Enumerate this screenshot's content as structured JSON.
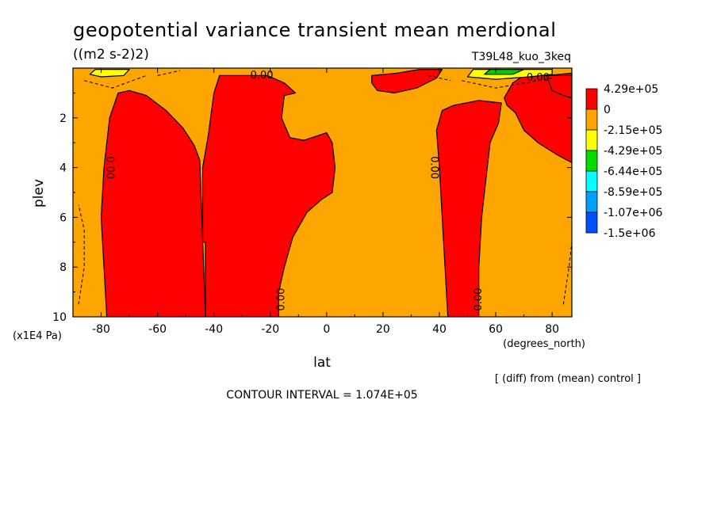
{
  "chart_data": {
    "type": "heatmap",
    "title": "geopotential variance transient mean merdional",
    "units": "((m2 s-2)2)",
    "run_label": "T39L48_kuo_3keq",
    "xlabel": "lat",
    "x_units": "(degrees_north)",
    "ylabel": "plev",
    "y_units": "(x1E4 Pa)",
    "xlim": [
      -90,
      87
    ],
    "ylim": [
      10,
      0
    ],
    "x_ticks": [
      -80,
      -60,
      -40,
      -20,
      0,
      20,
      40,
      60,
      80
    ],
    "x_tick_labels": [
      "-80",
      "-60",
      "-40",
      "-20",
      "0",
      "20",
      "40",
      "60",
      "80"
    ],
    "y_ticks": [
      2,
      4,
      6,
      8,
      10
    ],
    "y_tick_labels": [
      "2",
      "4",
      "6",
      "8",
      "10"
    ],
    "contour_interval_text": "CONTOUR INTERVAL = 1.074E+05",
    "diff_note": "[ (diff) from (mean) control ]",
    "contour_labels": [
      {
        "text": "0.00",
        "lat": -77,
        "plev": 4.0,
        "rotate": 90
      },
      {
        "text": "0.00",
        "lat": -16,
        "plev": 9.3,
        "rotate": -90
      },
      {
        "text": "0.00",
        "lat": -23,
        "plev": 0.3,
        "rotate": 0
      },
      {
        "text": "0.00",
        "lat": 38,
        "plev": 4.0,
        "rotate": 90
      },
      {
        "text": "0.00",
        "lat": 54,
        "plev": 9.3,
        "rotate": -90
      },
      {
        "text": "0.00",
        "lat": 75,
        "plev": 0.4,
        "rotate": 0
      }
    ],
    "regions": [
      {
        "level": "pos",
        "points": [
          [
            -78,
            10
          ],
          [
            -79,
            8
          ],
          [
            -80,
            6
          ],
          [
            -79,
            4
          ],
          [
            -77,
            2
          ],
          [
            -74,
            1
          ],
          [
            -70,
            0.9
          ],
          [
            -64,
            1.1
          ],
          [
            -57,
            1.7
          ],
          [
            -51,
            2.4
          ],
          [
            -47,
            3.1
          ],
          [
            -45,
            3.7
          ],
          [
            -43,
            10
          ]
        ]
      },
      {
        "level": "pos",
        "points": [
          [
            -44,
            7
          ],
          [
            -44,
            4
          ],
          [
            -42,
            2.7
          ],
          [
            -40,
            1
          ],
          [
            -38,
            0.3
          ],
          [
            -21,
            0.3
          ],
          [
            -15,
            0.6
          ],
          [
            -11,
            1.0
          ],
          [
            -15,
            1.1
          ],
          [
            -16,
            2
          ],
          [
            -13,
            2.8
          ],
          [
            -8,
            2.9
          ],
          [
            0,
            2.6
          ],
          [
            2,
            3
          ],
          [
            3,
            4
          ],
          [
            2,
            5
          ],
          [
            -2,
            5.3
          ],
          [
            -7,
            5.8
          ],
          [
            -12,
            6.8
          ],
          [
            -15,
            8
          ],
          [
            -17,
            9
          ],
          [
            -17,
            10
          ],
          [
            -43,
            10
          ],
          [
            -43,
            7
          ]
        ]
      },
      {
        "level": "pos",
        "points": [
          [
            16,
            0.3
          ],
          [
            25,
            0.2
          ],
          [
            33,
            0.05
          ],
          [
            41,
            0.05
          ],
          [
            39,
            0.4
          ],
          [
            32,
            0.8
          ],
          [
            24,
            1.0
          ],
          [
            18,
            0.9
          ],
          [
            16,
            0.6
          ]
        ]
      },
      {
        "level": "pos",
        "points": [
          [
            43,
            10
          ],
          [
            42,
            8
          ],
          [
            41,
            6
          ],
          [
            40,
            4
          ],
          [
            39,
            2.5
          ],
          [
            41,
            1.7
          ],
          [
            45,
            1.5
          ],
          [
            54,
            1.3
          ],
          [
            62,
            1.4
          ],
          [
            61,
            2.2
          ],
          [
            58,
            3
          ],
          [
            56,
            5
          ],
          [
            55,
            6
          ],
          [
            54,
            8
          ],
          [
            54,
            10
          ]
        ]
      },
      {
        "level": "pos",
        "points": [
          [
            63,
            1.2
          ],
          [
            66,
            0.6
          ],
          [
            70,
            0.3
          ],
          [
            78,
            0.3
          ],
          [
            87,
            0.2
          ],
          [
            87,
            3.8
          ],
          [
            82,
            3.5
          ],
          [
            75,
            3.0
          ],
          [
            70,
            2.5
          ],
          [
            67,
            1.8
          ],
          [
            64,
            1.5
          ]
        ]
      },
      {
        "level": "neg2",
        "points": [
          [
            -84,
            0.25
          ],
          [
            -82,
            0.05
          ],
          [
            -70,
            0.05
          ],
          [
            -72,
            0.3
          ],
          [
            -80,
            0.35
          ]
        ]
      },
      {
        "level": "neg2",
        "points": [
          [
            50,
            0.35
          ],
          [
            52,
            0.05
          ],
          [
            80,
            0.05
          ],
          [
            80,
            0.25
          ],
          [
            72,
            0.35
          ],
          [
            60,
            0.45
          ]
        ]
      },
      {
        "level": "neg3",
        "points": [
          [
            56,
            0.25
          ],
          [
            58,
            0.05
          ],
          [
            70,
            0.05
          ],
          [
            66,
            0.25
          ]
        ]
      },
      {
        "level": "pos",
        "points": [
          [
            78,
            0.3
          ],
          [
            82,
            0.3
          ],
          [
            87,
            0.3
          ],
          [
            87,
            1.2
          ],
          [
            84,
            1.1
          ],
          [
            80,
            0.9
          ]
        ]
      }
    ],
    "dashed_contours": [
      [
        [
          -88,
          9.5
        ],
        [
          -86,
          8
        ],
        [
          -86,
          6.5
        ],
        [
          -88,
          5.5
        ]
      ],
      [
        [
          84,
          9.5
        ],
        [
          86,
          8
        ],
        [
          87,
          7
        ]
      ],
      [
        [
          -86,
          0.5
        ],
        [
          -76,
          0.8
        ],
        [
          -64,
          0.3
        ]
      ],
      [
        [
          48,
          0.5
        ],
        [
          60,
          0.8
        ],
        [
          70,
          0.6
        ],
        [
          80,
          0.4
        ]
      ],
      [
        [
          -60,
          0.3
        ],
        [
          -52,
          0.1
        ]
      ],
      [
        [
          36,
          0.3
        ],
        [
          44,
          0.5
        ]
      ]
    ],
    "legend": {
      "labels": [
        "4.29e+05",
        "0",
        "-2.15e+05",
        "-4.29e+05",
        "-6.44e+05",
        "-8.59e+05",
        "-1.07e+06",
        "-1.5e+06"
      ],
      "colors": [
        "#ff0000",
        "#ffa500",
        "#ffff00",
        "#00dd00",
        "#00ffff",
        "#00a0ff",
        "#0050ff"
      ]
    },
    "fill_colors": {
      "background": "#ffa500",
      "pos": "#ff0000",
      "neg2": "#ffff00",
      "neg3": "#00cc00"
    }
  }
}
